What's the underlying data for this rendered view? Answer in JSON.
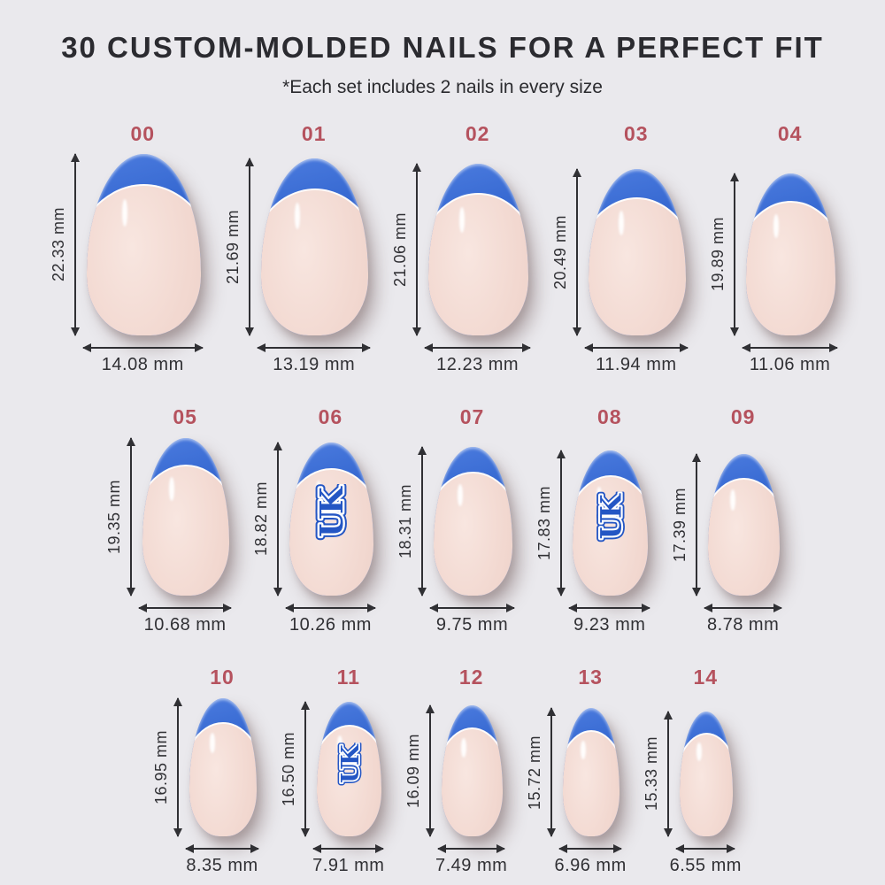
{
  "header": {
    "title": "30 CUSTOM-MOLDED NAILS FOR A PERFECT FIT",
    "subtitle": "*Each set includes 2 nails in every size"
  },
  "units": "mm",
  "colors": {
    "background": "#eae9ed",
    "accent_red": "#b5525e",
    "tip_blue": "#3063cd",
    "tip_blue_dark": "#2b5ac2",
    "nail_pink": "#f2d8d0",
    "nail_pink_deep": "#e8ccc3",
    "text_dark": "#303034",
    "title_dark": "#2b2b30",
    "logo_blue": "#2456c4"
  },
  "logo_text": "UK",
  "nails": [
    {
      "size": "00",
      "height_mm": 22.33,
      "width_mm": 14.08,
      "height_label": "22.33 mm",
      "width_label": "14.08 mm",
      "has_logo": false
    },
    {
      "size": "01",
      "height_mm": 21.69,
      "width_mm": 13.19,
      "height_label": "21.69 mm",
      "width_label": "13.19 mm",
      "has_logo": false
    },
    {
      "size": "02",
      "height_mm": 21.06,
      "width_mm": 12.23,
      "height_label": "21.06 mm",
      "width_label": "12.23 mm",
      "has_logo": false
    },
    {
      "size": "03",
      "height_mm": 20.49,
      "width_mm": 11.94,
      "height_label": "20.49 mm",
      "width_label": "11.94 mm",
      "has_logo": false
    },
    {
      "size": "04",
      "height_mm": 19.89,
      "width_mm": 11.06,
      "height_label": "19.89 mm",
      "width_label": "11.06 mm",
      "has_logo": false
    },
    {
      "size": "05",
      "height_mm": 19.35,
      "width_mm": 10.68,
      "height_label": "19.35 mm",
      "width_label": "10.68 mm",
      "has_logo": false
    },
    {
      "size": "06",
      "height_mm": 18.82,
      "width_mm": 10.26,
      "height_label": "18.82 mm",
      "width_label": "10.26 mm",
      "has_logo": true
    },
    {
      "size": "07",
      "height_mm": 18.31,
      "width_mm": 9.75,
      "height_label": "18.31 mm",
      "width_label": "9.75 mm",
      "has_logo": false
    },
    {
      "size": "08",
      "height_mm": 17.83,
      "width_mm": 9.23,
      "height_label": "17.83 mm",
      "width_label": "9.23 mm",
      "has_logo": true
    },
    {
      "size": "09",
      "height_mm": 17.39,
      "width_mm": 8.78,
      "height_label": "17.39 mm",
      "width_label": "8.78 mm",
      "has_logo": false
    },
    {
      "size": "10",
      "height_mm": 16.95,
      "width_mm": 8.35,
      "height_label": "16.95 mm",
      "width_label": "8.35 mm",
      "has_logo": false
    },
    {
      "size": "11",
      "height_mm": 16.5,
      "width_mm": 7.91,
      "height_label": "16.50 mm",
      "width_label": "7.91 mm",
      "has_logo": true
    },
    {
      "size": "12",
      "height_mm": 16.09,
      "width_mm": 7.49,
      "height_label": "16.09 mm",
      "width_label": "7.49 mm",
      "has_logo": false
    },
    {
      "size": "13",
      "height_mm": 15.72,
      "width_mm": 6.96,
      "height_label": "15.72 mm",
      "width_label": "6.96 mm",
      "has_logo": false
    },
    {
      "size": "14",
      "height_mm": 15.33,
      "width_mm": 6.55,
      "height_label": "15.33 mm",
      "width_label": "6.55 mm",
      "has_logo": false
    }
  ]
}
